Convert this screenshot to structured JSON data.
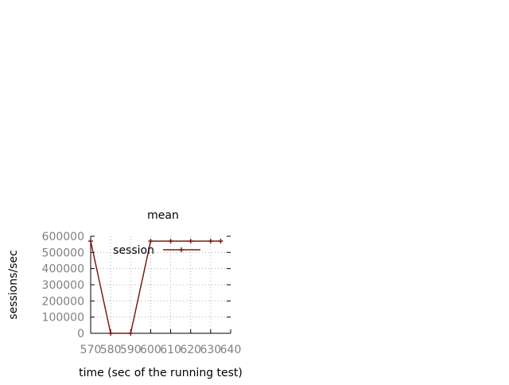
{
  "chart_data": {
    "type": "line",
    "title": "mean",
    "xlabel": "time (sec of the running test)",
    "ylabel": "sessions/sec",
    "xlim": [
      570,
      640
    ],
    "ylim": [
      0,
      600000
    ],
    "x_ticks": [
      570,
      580,
      590,
      600,
      610,
      620,
      630,
      640
    ],
    "y_ticks": [
      0,
      100000,
      200000,
      300000,
      400000,
      500000,
      600000
    ],
    "grid": true,
    "legend_position": "top-right",
    "series": [
      {
        "name": "session",
        "color": "#7b1c14",
        "x": [
          570,
          580,
          590,
          600,
          610,
          620,
          630,
          635
        ],
        "y": [
          570000,
          0,
          0,
          570000,
          570000,
          570000,
          570000,
          570000
        ]
      }
    ]
  }
}
